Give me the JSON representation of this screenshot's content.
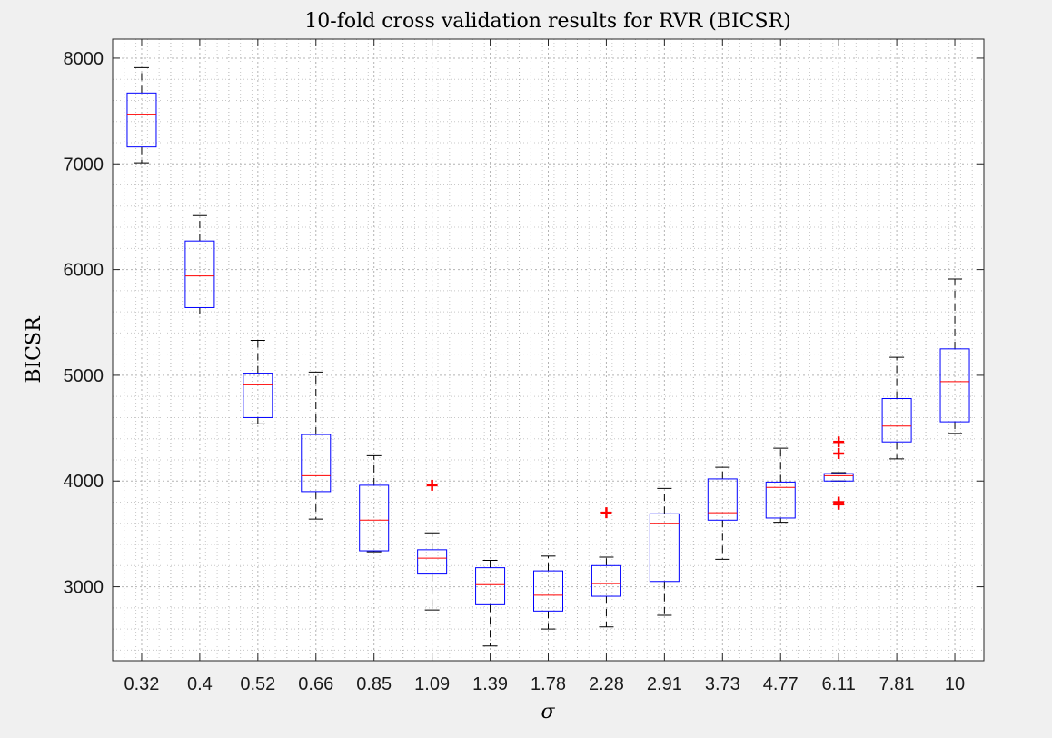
{
  "chart_data": {
    "type": "boxplot",
    "title": "10-fold cross validation results for RVR (BICSR)",
    "xlabel": "σ",
    "ylabel": "BICSR",
    "ylim": [
      2300,
      8180
    ],
    "yticks": [
      3000,
      4000,
      5000,
      6000,
      7000,
      8000
    ],
    "grid": true,
    "categories": [
      "0.32",
      "0.4",
      "0.52",
      "0.66",
      "0.85",
      "1.09",
      "1.39",
      "1.78",
      "2.28",
      "2.91",
      "3.73",
      "4.77",
      "6.11",
      "7.81",
      "10"
    ],
    "boxes": [
      {
        "whisker_low": 7010,
        "q1": 7160,
        "median": 7470,
        "q3": 7670,
        "whisker_high": 7910,
        "outliers": []
      },
      {
        "whisker_low": 5580,
        "q1": 5640,
        "median": 5940,
        "q3": 6270,
        "whisker_high": 6510,
        "outliers": []
      },
      {
        "whisker_low": 4540,
        "q1": 4600,
        "median": 4910,
        "q3": 5020,
        "whisker_high": 5330,
        "outliers": []
      },
      {
        "whisker_low": 3640,
        "q1": 3900,
        "median": 4050,
        "q3": 4440,
        "whisker_high": 5030,
        "outliers": []
      },
      {
        "whisker_low": 3330,
        "q1": 3340,
        "median": 3630,
        "q3": 3960,
        "whisker_high": 4240,
        "outliers": []
      },
      {
        "whisker_low": 2780,
        "q1": 3120,
        "median": 3270,
        "q3": 3350,
        "whisker_high": 3510,
        "outliers": [
          3960
        ]
      },
      {
        "whisker_low": 2440,
        "q1": 2830,
        "median": 3020,
        "q3": 3180,
        "whisker_high": 3250,
        "outliers": []
      },
      {
        "whisker_low": 2600,
        "q1": 2770,
        "median": 2920,
        "q3": 3150,
        "whisker_high": 3290,
        "outliers": []
      },
      {
        "whisker_low": 2620,
        "q1": 2910,
        "median": 3030,
        "q3": 3200,
        "whisker_high": 3280,
        "outliers": [
          3700
        ]
      },
      {
        "whisker_low": 2730,
        "q1": 3050,
        "median": 3600,
        "q3": 3690,
        "whisker_high": 3930,
        "outliers": []
      },
      {
        "whisker_low": 3260,
        "q1": 3630,
        "median": 3700,
        "q3": 4020,
        "whisker_high": 4130,
        "outliers": []
      },
      {
        "whisker_low": 3610,
        "q1": 3650,
        "median": 3940,
        "q3": 3990,
        "whisker_high": 4310,
        "outliers": []
      },
      {
        "whisker_low": 4000,
        "q1": 4000,
        "median": 4050,
        "q3": 4070,
        "whisker_high": 4080,
        "outliers": [
          4370,
          4260,
          3800,
          3780
        ]
      },
      {
        "whisker_low": 4210,
        "q1": 4370,
        "median": 4520,
        "q3": 4780,
        "whisker_high": 5170,
        "outliers": []
      },
      {
        "whisker_low": 4450,
        "q1": 4560,
        "median": 4940,
        "q3": 5250,
        "whisker_high": 5910,
        "outliers": []
      }
    ],
    "colors": {
      "box": "#0000ff",
      "median": "#ff0000",
      "whisker": "#000000",
      "outlier": "#ff0000",
      "grid": "#c8c8c8",
      "axes_bg": "#ffffff",
      "figure_bg": "#f0f0f0"
    }
  }
}
